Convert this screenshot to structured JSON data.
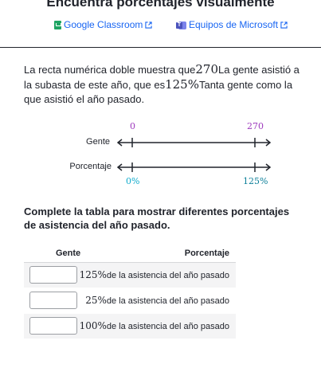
{
  "header": {
    "title": "Encuentra porcentajes visualmente",
    "google_classroom": "Google Classroom",
    "microsoft_teams": "Equipos de Microsoft"
  },
  "question": {
    "part1": "La recta numérica doble muestra que",
    "value1": "270",
    "part2": "La gente asistió a la subasta de este año, que es",
    "value2": "125%",
    "part3": "Tanta gente como la que asistió el año pasado."
  },
  "number_line": {
    "top_label": "Gente",
    "bottom_label": "Porcentaje",
    "top_start": "0",
    "top_end": "270",
    "bottom_start": "0%",
    "bottom_end": "125%",
    "colors": {
      "top": "#9d38bd",
      "bottom": "#11accd",
      "line": "#21242c"
    }
  },
  "instructions": "Complete la tabla para mostrar diferentes porcentajes de asistencia del año pasado.",
  "table": {
    "col_people": "Gente",
    "col_percent": "Porcentaje",
    "rows": [
      {
        "percent": "125%",
        "suffix": "de la asistencia del año pasado",
        "input_value": ""
      },
      {
        "percent": "25%",
        "suffix": "de la asistencia del año pasado",
        "input_value": ""
      },
      {
        "percent": "100%",
        "suffix": "de la asistencia del año pasado",
        "input_value": ""
      }
    ]
  },
  "icons": [
    "google-classroom-icon",
    "microsoft-teams-icon",
    "external-link-icon"
  ]
}
